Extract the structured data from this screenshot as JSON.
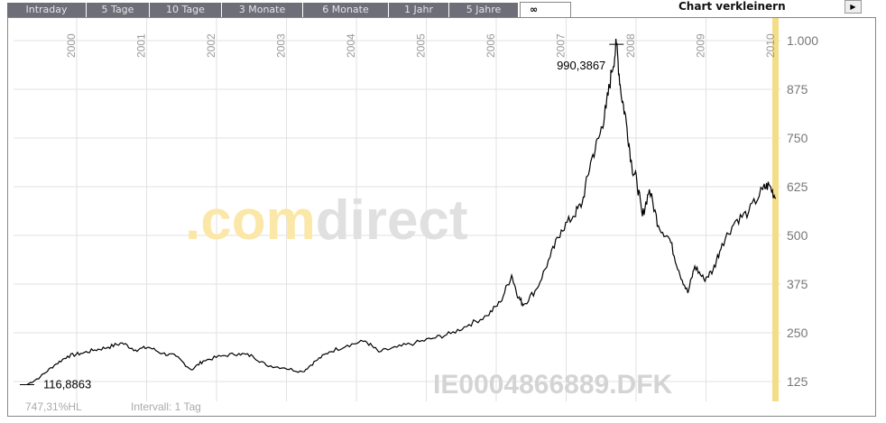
{
  "tabs": [
    {
      "label": "Intraday"
    },
    {
      "label": "5 Tage"
    },
    {
      "label": "10 Tage"
    },
    {
      "label": "3 Monate"
    },
    {
      "label": "6 Monate"
    },
    {
      "label": "1 Jahr"
    },
    {
      "label": "5 Jahre"
    },
    {
      "label": "∞",
      "active": true
    }
  ],
  "shrink_label": "Chart verkleinern",
  "shrink_icon": "play-right-icon",
  "footer": {
    "performance": "747,31%HL",
    "interval": "Intervall: 1 Tag"
  },
  "watermark": {
    "brand_a": ".com",
    "brand_b": "direct",
    "symbol": "IE0004866889.DFK"
  },
  "colors": {
    "line": "#000000",
    "grid": "#e2e2e2",
    "brand_yellow": "#fbe7a8",
    "brand_gray": "#e0e0e0",
    "today_band": "#f3dd86"
  },
  "chart_data": {
    "type": "line",
    "x_ticks": [
      "2000",
      "2001",
      "2002",
      "2003",
      "2004",
      "2005",
      "2006",
      "2007",
      "2008",
      "2009",
      "2010"
    ],
    "y_ticks": [
      "1.000",
      "875",
      "750",
      "625",
      "500",
      "375",
      "250",
      "125"
    ],
    "y_tick_values": [
      1000,
      875,
      750,
      625,
      500,
      375,
      250,
      125
    ],
    "xlim": [
      1999.1,
      2010.05
    ],
    "ylim": [
      95,
      1050
    ],
    "max_label": "990,3867",
    "max": {
      "x": 2007.72,
      "y": 990.3867
    },
    "min_label": "116,8863",
    "min": {
      "x": 1999.29,
      "y": 116.8863
    },
    "series": [
      {
        "name": "IE0004866889.DFK",
        "x": [
          1999.29,
          1999.48,
          1999.68,
          1999.87,
          2000.06,
          2000.26,
          2000.45,
          2000.65,
          2000.84,
          2001.03,
          2001.23,
          2001.42,
          2001.64,
          2001.81,
          2002.06,
          2002.32,
          2002.52,
          2002.71,
          2002.97,
          2003.23,
          2003.42,
          2003.61,
          2003.87,
          2004.13,
          2004.32,
          2004.58,
          2004.84,
          2005.1,
          2005.35,
          2005.61,
          2005.87,
          2006.06,
          2006.22,
          2006.32,
          2006.39,
          2006.58,
          2006.77,
          2006.93,
          2007.1,
          2007.23,
          2007.35,
          2007.48,
          2007.57,
          2007.65,
          2007.72,
          2007.78,
          2007.86,
          2007.94,
          2008.01,
          2008.09,
          2008.19,
          2008.32,
          2008.48,
          2008.61,
          2008.74,
          2008.84,
          2008.97,
          2009.1,
          2009.23,
          2009.42,
          2009.61,
          2009.81,
          2009.9,
          2010.0
        ],
        "y": [
          117,
          137,
          167,
          190,
          197,
          206,
          213,
          224,
          206,
          213,
          197,
          190,
          155,
          178,
          190,
          197,
          190,
          167,
          160,
          150,
          178,
          201,
          218,
          229,
          201,
          213,
          224,
          236,
          248,
          271,
          294,
          329,
          398,
          340,
          322,
          363,
          444,
          514,
          549,
          583,
          688,
          757,
          826,
          919,
          990,
          873,
          792,
          676,
          641,
          549,
          618,
          525,
          491,
          410,
          352,
          421,
          387,
          410,
          479,
          537,
          560,
          618,
          630,
          595
        ]
      }
    ]
  }
}
